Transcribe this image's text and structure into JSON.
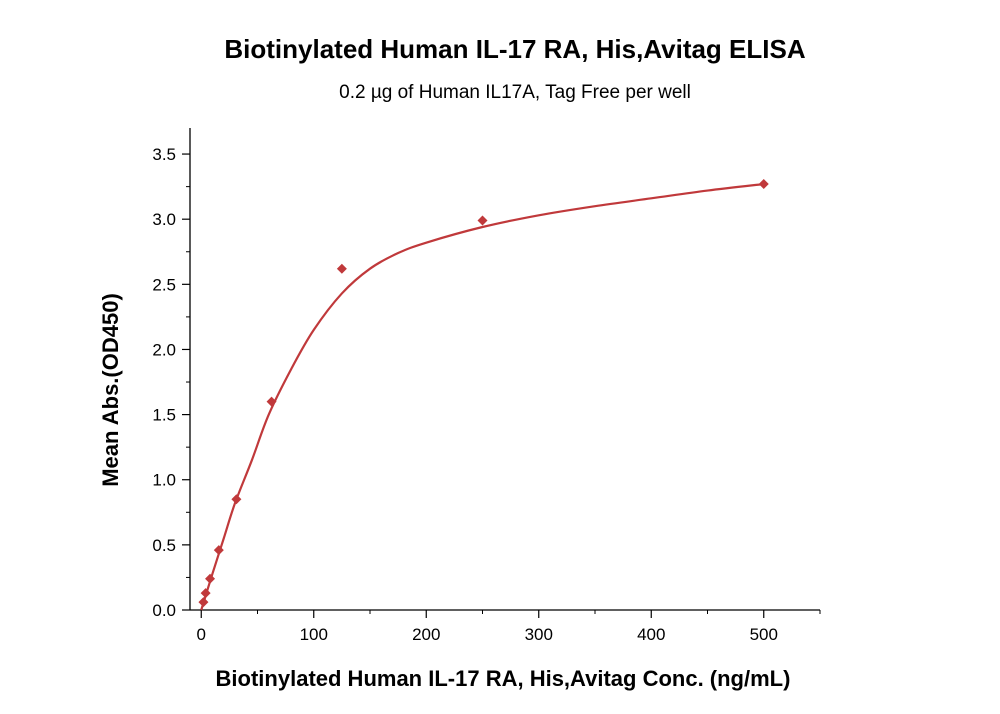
{
  "chart_data": {
    "type": "scatter",
    "title": "Biotinylated Human IL-17 RA, His,Avitag ELISA",
    "subtitle": "0.2 µg of Human IL17A, Tag Free per well",
    "xlabel": "Biotinylated Human IL-17 RA, His,Avitag Conc. (ng/mL)",
    "ylabel": "Mean Abs.(OD450)",
    "xlim": [
      -10,
      550
    ],
    "ylim": [
      0,
      3.7
    ],
    "xticks": [
      0,
      100,
      200,
      300,
      400,
      500
    ],
    "yticks": [
      0.0,
      0.5,
      1.0,
      1.5,
      2.0,
      2.5,
      3.0,
      3.5
    ],
    "xtick_labels": [
      "0",
      "100",
      "200",
      "300",
      "400",
      "500"
    ],
    "ytick_labels": [
      "0.0",
      "0.5",
      "1.0",
      "1.5",
      "2.0",
      "2.5",
      "3.0",
      "3.5"
    ],
    "grid": false,
    "color": "#c0393b",
    "points": {
      "x": [
        1.95,
        3.9,
        7.8,
        15.6,
        31.25,
        62.5,
        125,
        250,
        500
      ],
      "y": [
        0.06,
        0.13,
        0.24,
        0.46,
        0.85,
        1.6,
        2.62,
        2.99,
        3.27
      ]
    },
    "fit_curve": {
      "x": [
        0,
        10,
        20,
        30,
        45,
        60,
        80,
        100,
        125,
        150,
        175,
        200,
        250,
        300,
        350,
        400,
        450,
        500
      ],
      "y": [
        0.0,
        0.28,
        0.55,
        0.82,
        1.15,
        1.5,
        1.85,
        2.15,
        2.43,
        2.62,
        2.74,
        2.82,
        2.94,
        3.03,
        3.1,
        3.16,
        3.22,
        3.27
      ]
    }
  }
}
